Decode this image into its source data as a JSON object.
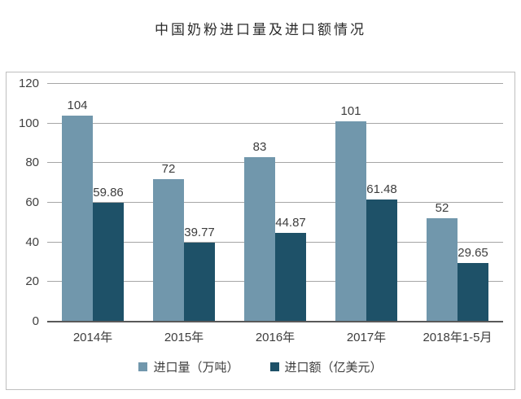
{
  "title": "中国奶粉进口量及进口额情况",
  "colors": {
    "series1": "#7197AC",
    "series2": "#1E5168",
    "gridline": "#A6A6A6",
    "axis_line": "#595959",
    "panel_border": "#BFBFBF",
    "label_text": "#3D3D3D",
    "title_text": "#2B2B2B",
    "background": "#FFFFFF"
  },
  "chart_data": {
    "type": "bar",
    "title": "中国奶粉进口量及进口额情况",
    "categories": [
      "2014年",
      "2015年",
      "2016年",
      "2017年",
      "2018年1-5月"
    ],
    "series": [
      {
        "name": "进口量（万吨）",
        "values": [
          104,
          72,
          83,
          101,
          52
        ],
        "labels": [
          "104",
          "72",
          "83",
          "101",
          "52"
        ],
        "color": "#7197AC"
      },
      {
        "name": "进口额（亿美元）",
        "values": [
          59.86,
          39.77,
          44.87,
          61.48,
          29.65
        ],
        "labels": [
          "59.86",
          "39.77",
          "44.87",
          "61.48",
          "29.65"
        ],
        "color": "#1E5168"
      }
    ],
    "xlabel": "",
    "ylabel": "",
    "ylim": [
      0,
      120
    ],
    "yticks": [
      0,
      20,
      40,
      60,
      80,
      100,
      120
    ],
    "grid": true,
    "data_labels": true,
    "legend_position": "bottom"
  }
}
